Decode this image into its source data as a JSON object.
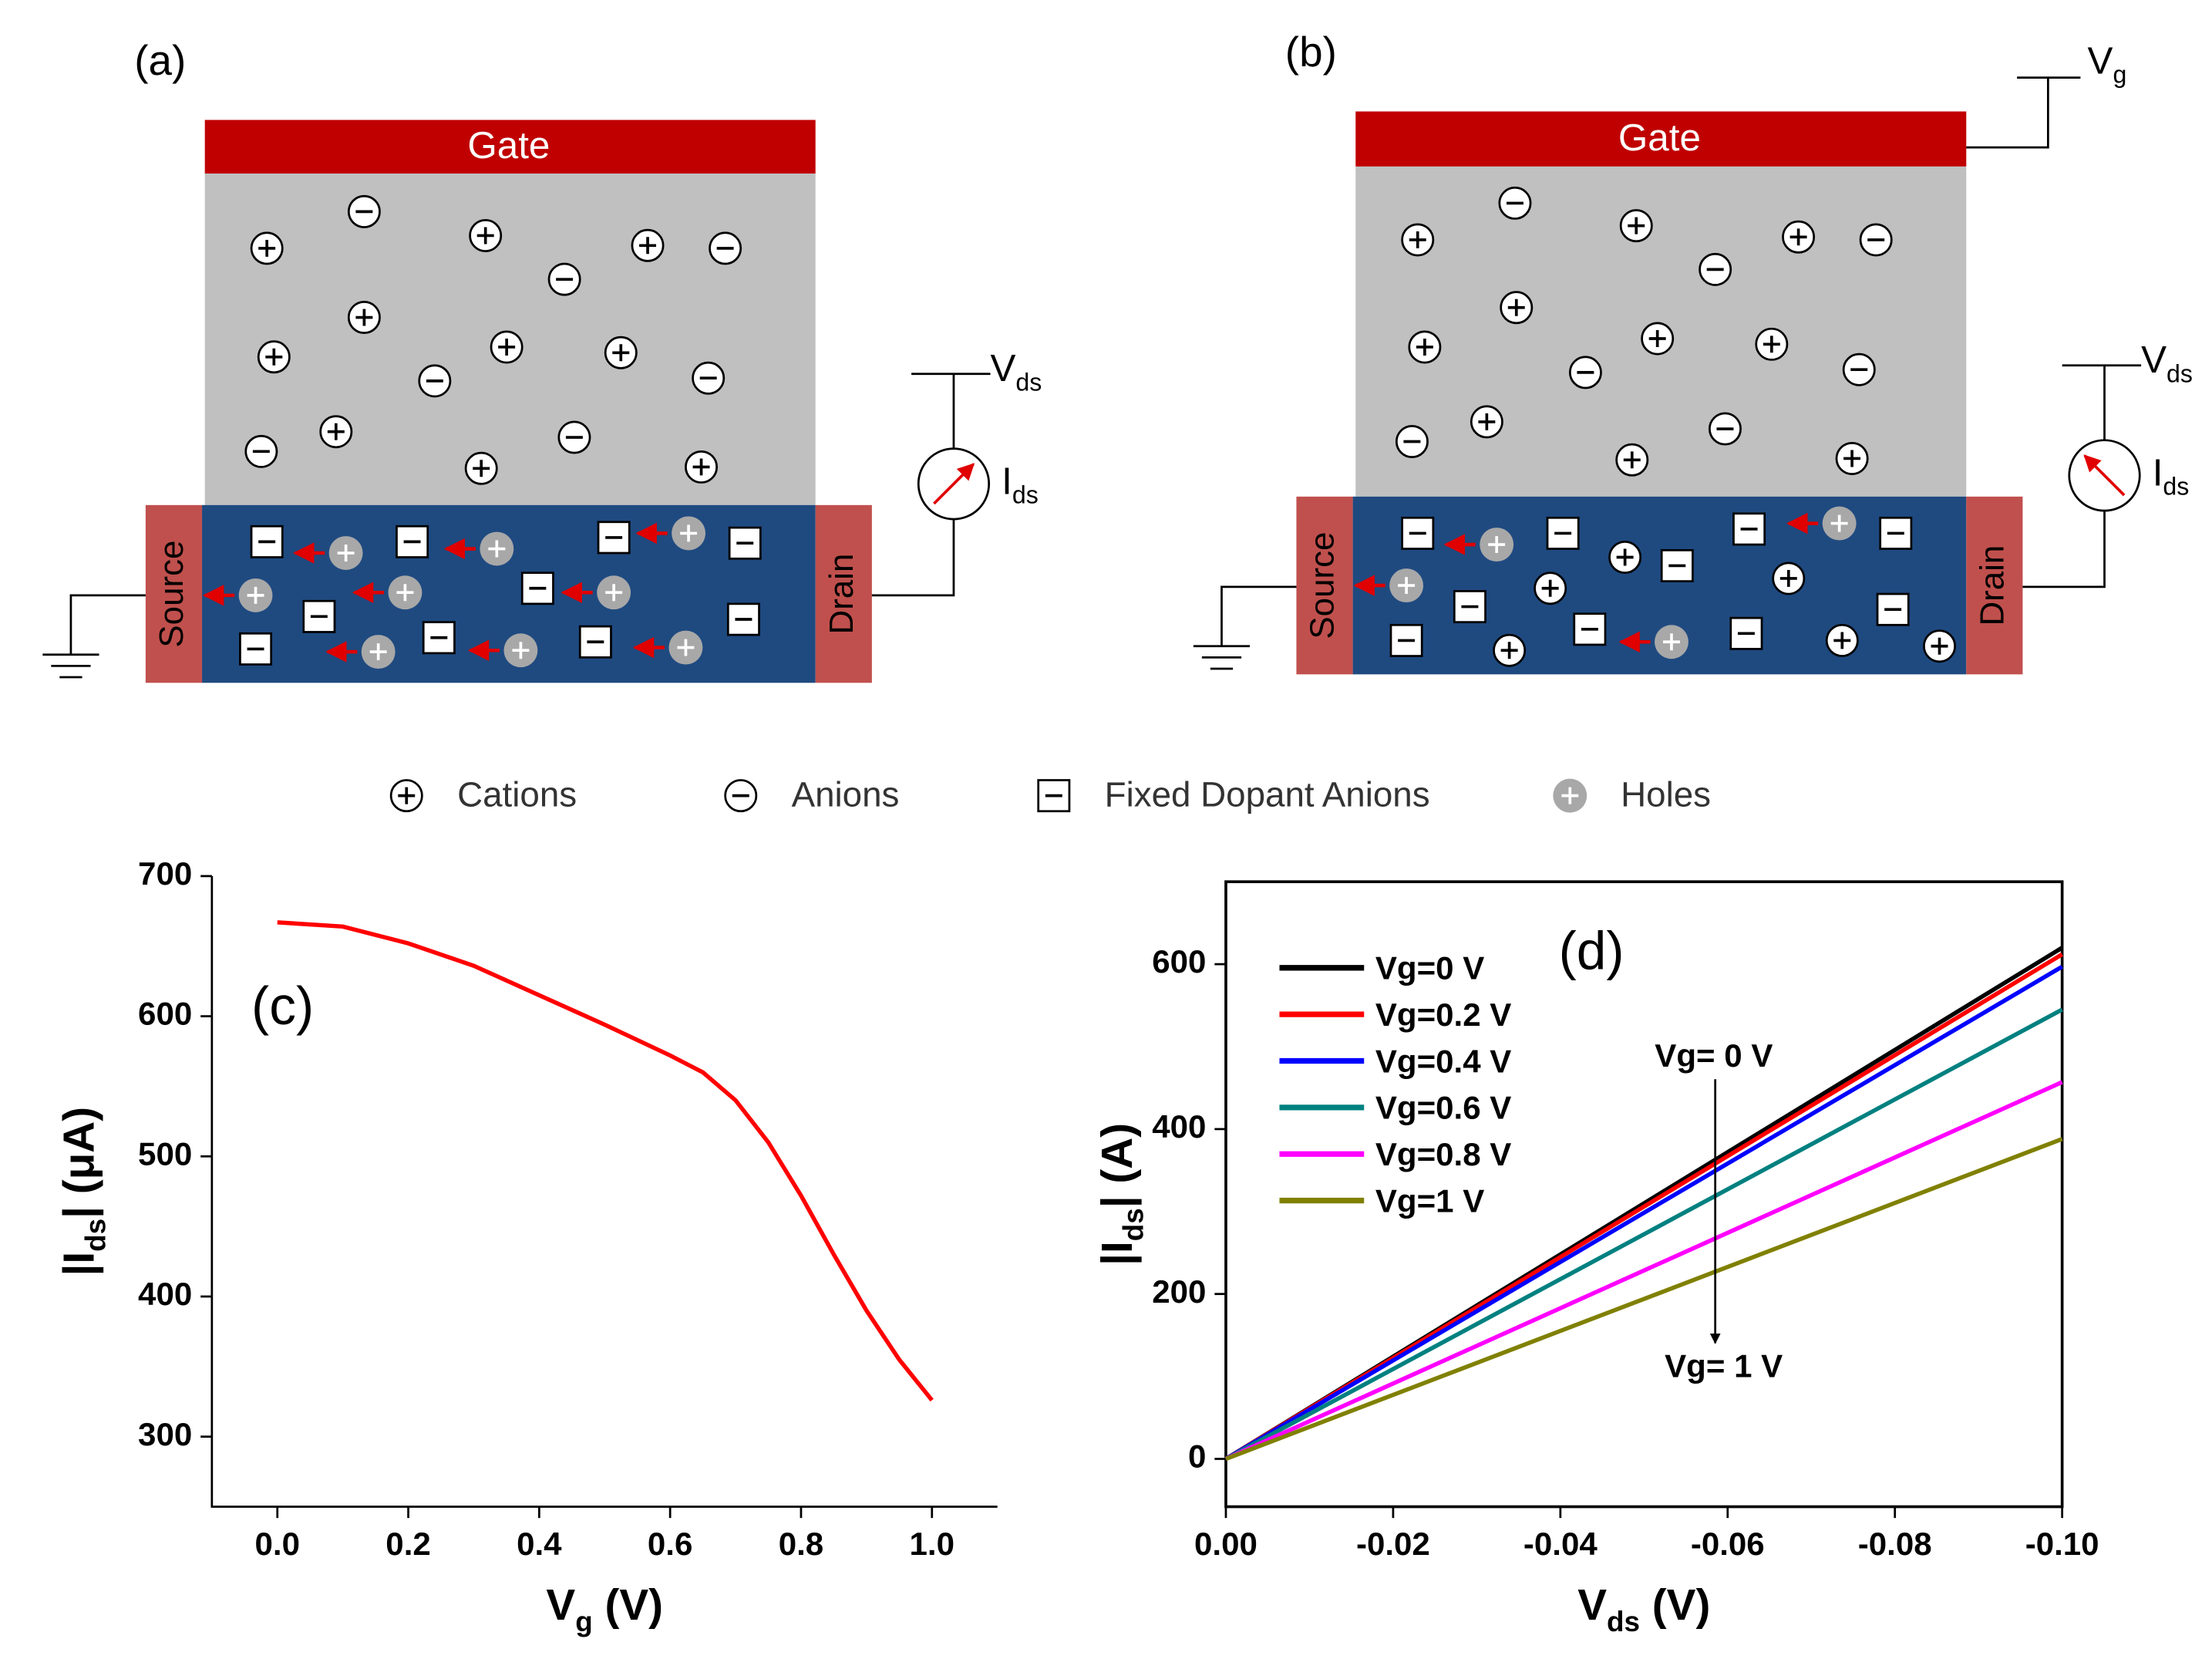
{
  "diagrams": [
    {
      "panel": "(a)",
      "gate": "Gate",
      "source": "Source",
      "drain": "Drain",
      "vds": {
        "main": "V",
        "sub": "ds"
      },
      "ids": {
        "main": "I",
        "sub": "ds"
      }
    },
    {
      "panel": "(b)",
      "gate": "Gate",
      "source": "Source",
      "drain": "Drain",
      "vds": {
        "main": "V",
        "sub": "ds"
      },
      "ids": {
        "main": "I",
        "sub": "ds"
      },
      "vg": {
        "main": "V",
        "sub": "g"
      }
    }
  ],
  "legend": [
    "Cations",
    "Anions",
    "Fixed Dopant Anions",
    "Holes"
  ],
  "chart_data": [
    {
      "type": "line",
      "annotation": "(c)",
      "color": "#ff0000",
      "x": [
        0,
        0.1,
        0.2,
        0.3,
        0.4,
        0.5,
        0.6,
        0.65,
        0.7,
        0.75,
        0.8,
        0.85,
        0.9,
        0.95,
        1.0
      ],
      "values": [
        667,
        664,
        652,
        636,
        615,
        594,
        572,
        560,
        540,
        510,
        472,
        430,
        390,
        355,
        326
      ],
      "xlim": [
        -0.1,
        1.1
      ],
      "ylim": [
        250,
        700
      ],
      "xticks": [
        {
          "value": 0,
          "label": "0.0"
        },
        0.2,
        0.4,
        0.6,
        0.8,
        {
          "value": 1,
          "label": "1.0"
        }
      ],
      "yticks": [
        300,
        400,
        500,
        600,
        700
      ],
      "xlabel": {
        "main": "V",
        "sub": "g",
        "tail": " (V)"
      },
      "ylabel": {
        "main": "|I",
        "sub": "ds",
        "tail": "| (μA)"
      }
    },
    {
      "type": "line",
      "annotation": "(d)",
      "arrow_top": "Vg= 0 V",
      "arrow_bottom": "Vg= 1 V",
      "x": [
        0,
        -0.1
      ],
      "series": [
        {
          "name": "Vg=0 V",
          "color": "#000000",
          "values": [
            0,
            620
          ]
        },
        {
          "name": "Vg=0.2 V",
          "color": "#ff0000",
          "values": [
            0,
            612
          ]
        },
        {
          "name": "Vg=0.4 V",
          "color": "#0000ff",
          "values": [
            0,
            597
          ]
        },
        {
          "name": "Vg=0.6 V",
          "color": "#008080",
          "values": [
            0,
            545
          ]
        },
        {
          "name": "Vg=0.8 V",
          "color": "#ff00ff",
          "values": [
            0,
            457
          ]
        },
        {
          "name": "Vg=1 V",
          "color": "#808000",
          "values": [
            0,
            388
          ]
        }
      ],
      "xlim": [
        0,
        -0.1
      ],
      "ylim": [
        -58,
        700
      ],
      "xticks": [
        {
          "value": 0,
          "label": "0.00"
        },
        -0.02,
        -0.04,
        -0.06,
        -0.08,
        {
          "value": -0.1,
          "label": "-0.10"
        }
      ],
      "yticks": [
        0,
        200,
        400,
        600
      ],
      "xlabel": {
        "main": "V",
        "sub": "ds",
        "tail": " (V)"
      },
      "ylabel": {
        "main": "|I",
        "sub": "ds",
        "tail": "| (A)"
      }
    }
  ]
}
